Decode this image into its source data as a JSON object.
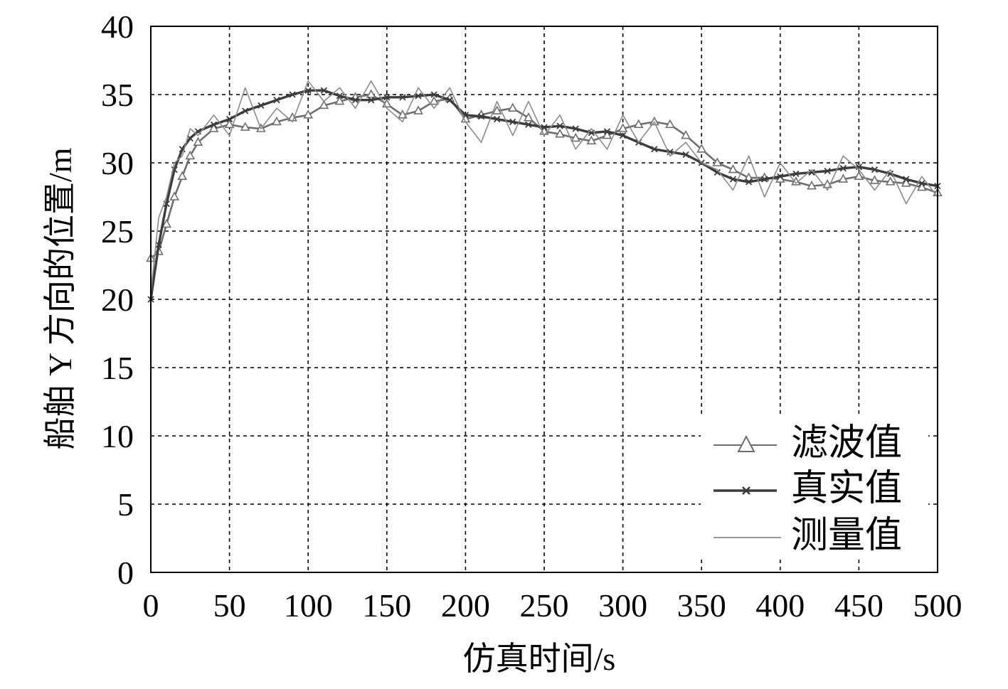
{
  "chart_data": {
    "type": "line",
    "title": "",
    "xlabel": "仿真时间/s",
    "ylabel": "船舶 Y 方向的位置/m",
    "xlim": [
      0,
      500
    ],
    "ylim": [
      0,
      40
    ],
    "xticks": [
      0,
      50,
      100,
      150,
      200,
      250,
      300,
      350,
      400,
      450,
      500
    ],
    "yticks": [
      0,
      5,
      10,
      15,
      20,
      25,
      30,
      35,
      40
    ],
    "grid": true,
    "legend_position": "bottom-right",
    "colors": {
      "filtered": "#6e6e6e",
      "true": "#3c3c3c",
      "measured": "#8a8a8a"
    },
    "series": [
      {
        "name": "滤波值",
        "marker": "triangle",
        "x": [
          0,
          5,
          10,
          15,
          20,
          25,
          30,
          40,
          50,
          60,
          70,
          80,
          90,
          100,
          110,
          120,
          130,
          140,
          150,
          160,
          170,
          180,
          190,
          200,
          210,
          220,
          230,
          240,
          250,
          260,
          270,
          280,
          290,
          300,
          310,
          320,
          330,
          340,
          350,
          360,
          370,
          380,
          390,
          400,
          410,
          420,
          430,
          440,
          450,
          460,
          470,
          480,
          490,
          500
        ],
        "y": [
          23.0,
          23.5,
          25.5,
          27.5,
          29.0,
          30.5,
          31.5,
          32.5,
          32.8,
          32.6,
          32.5,
          33.0,
          33.3,
          33.5,
          34.2,
          34.5,
          34.8,
          35.0,
          34.3,
          33.5,
          33.8,
          34.5,
          34.7,
          33.2,
          33.5,
          33.8,
          34.0,
          33.3,
          32.3,
          32.1,
          31.8,
          31.6,
          32.0,
          32.5,
          32.8,
          33.0,
          32.8,
          32.0,
          31.0,
          30.0,
          29.5,
          28.9,
          28.9,
          28.8,
          28.6,
          28.3,
          28.4,
          28.8,
          29.0,
          28.7,
          28.6,
          28.5,
          28.2,
          27.8
        ]
      },
      {
        "name": "真实值",
        "marker": "x",
        "x": [
          0,
          5,
          10,
          15,
          20,
          25,
          30,
          40,
          50,
          60,
          70,
          80,
          90,
          100,
          110,
          120,
          130,
          140,
          150,
          160,
          170,
          180,
          190,
          200,
          210,
          220,
          230,
          240,
          250,
          260,
          270,
          280,
          290,
          300,
          310,
          320,
          330,
          340,
          350,
          360,
          370,
          380,
          390,
          400,
          410,
          420,
          430,
          440,
          450,
          460,
          470,
          480,
          490,
          500
        ],
        "y": [
          20.0,
          24.0,
          27.0,
          29.5,
          31.0,
          31.8,
          32.3,
          32.8,
          33.2,
          33.8,
          34.2,
          34.6,
          35.0,
          35.3,
          35.3,
          34.9,
          34.6,
          34.6,
          34.8,
          34.8,
          34.9,
          35.0,
          34.6,
          33.5,
          33.4,
          33.2,
          33.0,
          32.8,
          32.6,
          32.7,
          32.5,
          32.2,
          32.3,
          32.0,
          31.5,
          31.0,
          30.8,
          30.6,
          30.0,
          29.3,
          28.8,
          28.6,
          28.8,
          29.0,
          29.2,
          29.3,
          29.4,
          29.6,
          29.7,
          29.5,
          29.2,
          28.8,
          28.5,
          28.3
        ]
      },
      {
        "name": "测量值",
        "marker": "none",
        "x": [
          0,
          5,
          10,
          15,
          20,
          25,
          30,
          40,
          50,
          60,
          70,
          80,
          90,
          100,
          110,
          120,
          130,
          140,
          150,
          160,
          170,
          180,
          190,
          200,
          210,
          220,
          230,
          240,
          250,
          260,
          270,
          280,
          290,
          300,
          310,
          320,
          330,
          340,
          350,
          360,
          370,
          380,
          390,
          400,
          410,
          420,
          430,
          440,
          450,
          460,
          470,
          480,
          490,
          500
        ],
        "y": [
          20.5,
          26.0,
          27.5,
          30.0,
          30.5,
          32.5,
          32.0,
          33.5,
          32.0,
          35.5,
          32.5,
          34.0,
          33.0,
          36.0,
          34.5,
          35.5,
          34.0,
          36.0,
          34.0,
          33.0,
          35.5,
          34.0,
          35.5,
          33.0,
          31.5,
          34.5,
          32.0,
          34.5,
          32.0,
          33.5,
          31.0,
          32.5,
          31.0,
          33.5,
          31.5,
          33.0,
          30.5,
          31.5,
          30.0,
          29.5,
          28.0,
          30.5,
          27.5,
          30.0,
          28.5,
          29.5,
          28.0,
          30.5,
          29.5,
          28.0,
          29.5,
          27.0,
          29.0,
          27.5
        ]
      }
    ]
  }
}
